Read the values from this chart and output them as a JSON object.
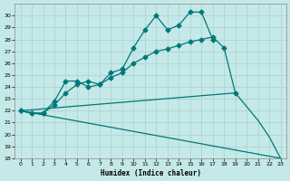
{
  "xlabel": "Humidex (Indice chaleur)",
  "background_color": "#c5e8e8",
  "grid_color": "#a8d0d0",
  "line_color": "#007878",
  "ylim": [
    18,
    31
  ],
  "xlim": [
    -0.5,
    23.5
  ],
  "yticks": [
    18,
    19,
    20,
    21,
    22,
    23,
    24,
    25,
    26,
    27,
    28,
    29,
    30
  ],
  "xticks": [
    0,
    1,
    2,
    3,
    4,
    5,
    6,
    7,
    8,
    9,
    10,
    11,
    12,
    13,
    14,
    15,
    16,
    17,
    18,
    19,
    20,
    21,
    22,
    23
  ],
  "line1_x": [
    0,
    1,
    2,
    3,
    4,
    5,
    6,
    7,
    8,
    9,
    10,
    11,
    12,
    13,
    14,
    15,
    16,
    17
  ],
  "line1_y": [
    22.0,
    21.8,
    21.8,
    22.8,
    24.5,
    24.5,
    24.0,
    24.2,
    25.2,
    25.5,
    27.3,
    28.8,
    30.0,
    28.8,
    29.2,
    30.3,
    30.3,
    28.0
  ],
  "line2_x": [
    0,
    1,
    2,
    3,
    4,
    5,
    6,
    7,
    8,
    9,
    10,
    11,
    12,
    13,
    14,
    15,
    16,
    17,
    18,
    19
  ],
  "line2_y": [
    22.0,
    21.8,
    21.8,
    22.5,
    23.5,
    24.2,
    24.5,
    24.2,
    24.8,
    25.2,
    26.0,
    26.5,
    27.0,
    27.2,
    27.5,
    27.8,
    28.0,
    28.2,
    27.3,
    23.5
  ],
  "line3_x": [
    0,
    23
  ],
  "line3_y": [
    22.0,
    18.0
  ],
  "line4_x": [
    0,
    19,
    21,
    22,
    23
  ],
  "line4_y": [
    22.0,
    23.5,
    21.2,
    19.8,
    18.0
  ],
  "marker": "D",
  "markersize": 2.5,
  "linewidth": 0.9
}
